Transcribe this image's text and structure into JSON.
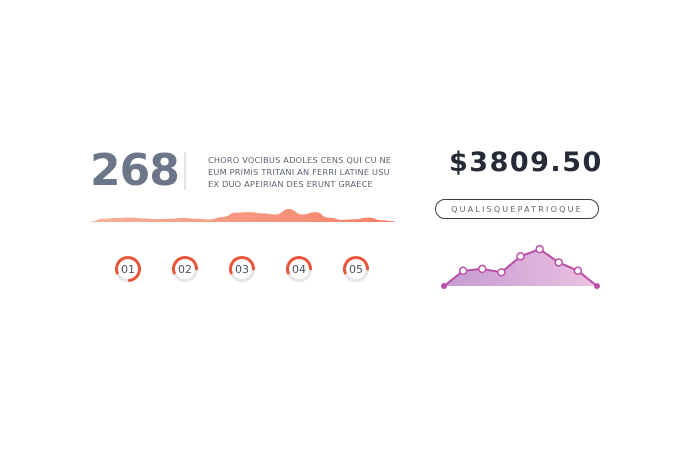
{
  "stat": {
    "value": "268",
    "description_lines": [
      "CHORO VOCIBUS ADOLES CENS QUI CU NE",
      "EUM PRIMIS TRITANI AN FERRI LATINE USU",
      "EX DUO APEIRIAN DES ERUNT GRAECE"
    ]
  },
  "price": {
    "value": "$3809.50",
    "button_label": "QUALISQUEPATRIOQUE"
  },
  "colors": {
    "wave_start": "#f7b19a",
    "wave_end": "#f47f66",
    "ring_accent": "#e8553a",
    "ring_track": "#e6e6e6",
    "area_fill_start": "#c59ad0",
    "area_fill_end": "#ecc1e2",
    "line_stroke": "#b94fa7"
  },
  "chart_data": [
    {
      "type": "area",
      "title": "",
      "series": [
        {
          "values": [
            0.02,
            0.18,
            0.22,
            0.25,
            0.2,
            0.16,
            0.18,
            0.23,
            0.18,
            0.14,
            0.28,
            0.52,
            0.55,
            0.48,
            0.42,
            0.72,
            0.42,
            0.55,
            0.24,
            0.12,
            0.15,
            0.24,
            0.1,
            0.04
          ]
        }
      ]
    },
    {
      "type": "pie",
      "title": "",
      "categories": [
        "01",
        "02",
        "03",
        "04",
        "05"
      ],
      "values": [
        0.78,
        0.55,
        0.55,
        0.55,
        0.55
      ]
    },
    {
      "type": "line",
      "title": "",
      "series": [
        {
          "values": [
            0.0,
            0.4,
            0.45,
            0.36,
            0.78,
            0.97,
            0.62,
            0.4,
            0.0
          ]
        }
      ]
    }
  ]
}
